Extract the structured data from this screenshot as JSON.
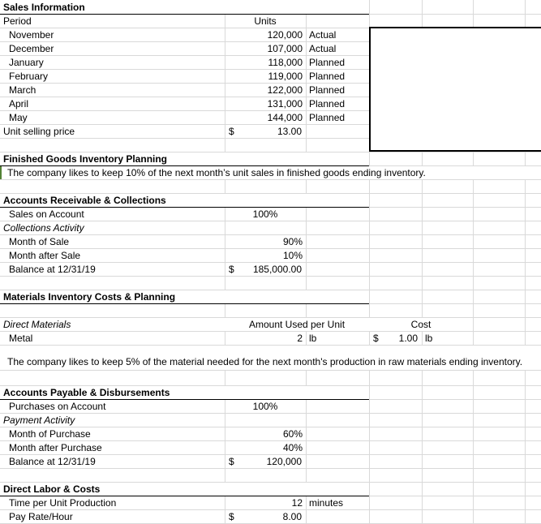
{
  "colors": {
    "gridline": "#d9d9d9",
    "section_border": "#000000",
    "object_border": "#000000",
    "flag_green": "#538135",
    "text": "#000000",
    "bg": "#ffffff"
  },
  "sales_information": {
    "title": "Sales Information",
    "period_header": "Period",
    "units_header": "Units",
    "rows": [
      {
        "month": "November",
        "units": "120,000",
        "status": "Actual"
      },
      {
        "month": "December",
        "units": "107,000",
        "status": "Actual"
      },
      {
        "month": "January",
        "units": "118,000",
        "status": "Planned"
      },
      {
        "month": "February",
        "units": "119,000",
        "status": "Planned"
      },
      {
        "month": "March",
        "units": "122,000",
        "status": "Planned"
      },
      {
        "month": "April",
        "units": "131,000",
        "status": "Planned"
      },
      {
        "month": "May",
        "units": "144,000",
        "status": "Planned"
      }
    ],
    "unit_selling_price": {
      "label": "Unit selling price",
      "currency": "$",
      "value": "13.00"
    }
  },
  "finished_goods": {
    "title": "Finished Goods Inventory Planning",
    "note": "The company likes to keep 10% of the next month’s unit sales in finished goods ending inventory."
  },
  "accounts_receivable": {
    "title": "Accounts Receivable & Collections",
    "sales_on_account": {
      "label": "Sales on Account",
      "value": "100%"
    },
    "activity_header": "Collections Activity",
    "month_of_sale": {
      "label": "Month of Sale",
      "value": "90%"
    },
    "month_after_sale": {
      "label": "Month after Sale",
      "value": "10%"
    },
    "balance": {
      "label": "Balance at 12/31/19",
      "currency": "$",
      "value": "185,000.00"
    }
  },
  "materials": {
    "title": "Materials Inventory Costs & Planning",
    "direct_materials_header": "Direct Materials",
    "amount_header": "Amount Used per Unit",
    "cost_header": "Cost",
    "metal": {
      "label": "Metal",
      "amount": "2",
      "amount_unit": "lb",
      "cost_currency": "$",
      "cost_value": "1.00",
      "cost_unit": "lb"
    },
    "note": "The company likes to keep 5% of the material needed for the next month's production in raw materials ending inventory."
  },
  "accounts_payable": {
    "title": "Accounts Payable & Disbursements",
    "purchases_on_account": {
      "label": "Purchases on Account",
      "value": "100%"
    },
    "activity_header": "Payment Activity",
    "month_of_purchase": {
      "label": "Month of Purchase",
      "value": "60%"
    },
    "month_after_purchase": {
      "label": "Month after Purchase",
      "value": "40%"
    },
    "balance": {
      "label": "Balance at 12/31/19",
      "currency": "$",
      "value": "120,000"
    }
  },
  "direct_labor": {
    "title": "Direct Labor & Costs",
    "time_per_unit": {
      "label": "Time per Unit Production",
      "value": "12",
      "unit": "minutes"
    },
    "pay_rate": {
      "label": "Pay Rate/Hour",
      "currency": "$",
      "value": "8.00"
    }
  }
}
